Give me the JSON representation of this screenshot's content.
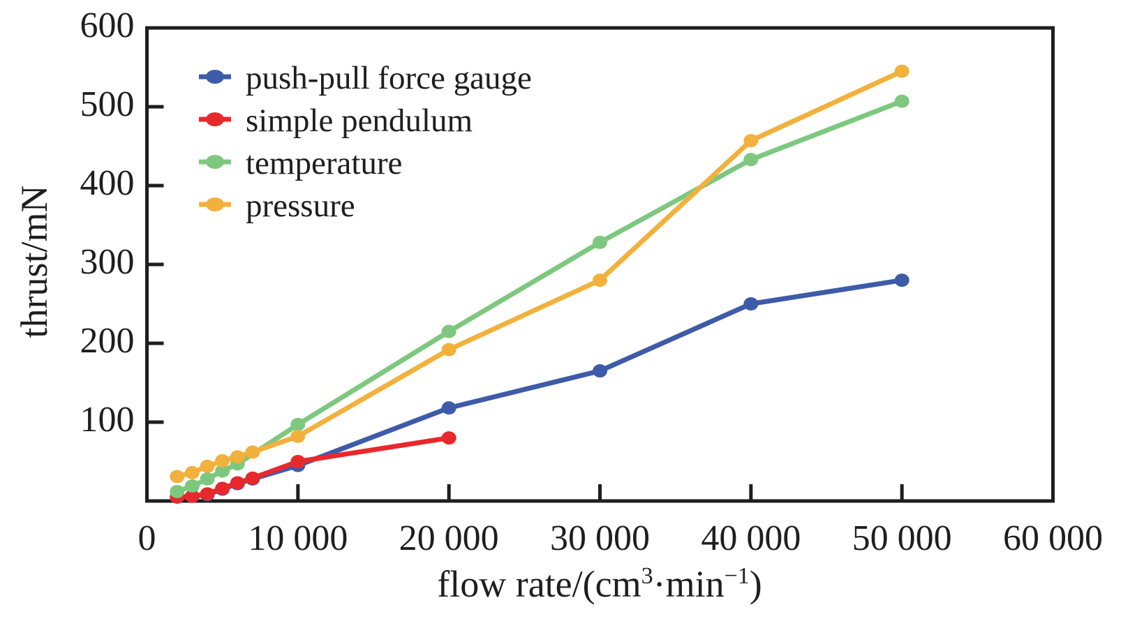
{
  "chart_data": {
    "type": "line",
    "title": "",
    "xlabel": "flow rate/(cm³·min⁻¹)",
    "xlabel_parts": {
      "a": "flow rate/(cm",
      "sup1": "3",
      "b": "·min",
      "sup2": "−1",
      "c": ")"
    },
    "ylabel": "thrust/mN",
    "xlim": [
      0,
      60000
    ],
    "ylim": [
      0,
      600
    ],
    "x_ticks": [
      0,
      10000,
      20000,
      30000,
      40000,
      50000,
      60000
    ],
    "x_tick_labels": [
      "0",
      "10 000",
      "20 000",
      "30 000",
      "40 000",
      "50 000",
      "60 000"
    ],
    "y_ticks": [
      100,
      200,
      300,
      400,
      500,
      600
    ],
    "y_tick_labels": [
      "100",
      "200",
      "300",
      "400",
      "500",
      "600"
    ],
    "grid": false,
    "axis_color": "#1E1E1E",
    "text_color": "#1E1E1E",
    "legend": {
      "position": "inside-top-left",
      "entries": [
        "push-pull force gauge",
        "simple pendulum",
        "temperature",
        "pressure"
      ]
    },
    "series": [
      {
        "name": "push-pull force gauge",
        "color": "#3E5BA9",
        "x": [
          2000,
          3000,
          4000,
          5000,
          6000,
          7000,
          10000,
          20000,
          30000,
          40000,
          50000
        ],
        "y": [
          5,
          6,
          8,
          15,
          22,
          28,
          45,
          118,
          165,
          250,
          280
        ]
      },
      {
        "name": "simple pendulum",
        "color": "#E8292C",
        "x": [
          2000,
          3000,
          4000,
          5000,
          6000,
          7000,
          10000,
          20000
        ],
        "y": [
          5,
          6,
          9,
          16,
          23,
          29,
          50,
          80
        ]
      },
      {
        "name": "temperature",
        "color": "#7DC87E",
        "x": [
          2000,
          3000,
          4000,
          5000,
          6000,
          10000,
          20000,
          30000,
          40000,
          50000
        ],
        "y": [
          12,
          19,
          28,
          38,
          47,
          97,
          215,
          328,
          433,
          507
        ]
      },
      {
        "name": "pressure",
        "color": "#F2B13D",
        "x": [
          2000,
          3000,
          4000,
          5000,
          6000,
          7000,
          10000,
          20000,
          30000,
          40000,
          50000
        ],
        "y": [
          31,
          36,
          44,
          51,
          56,
          62,
          82,
          192,
          280,
          457,
          545
        ]
      }
    ]
  }
}
